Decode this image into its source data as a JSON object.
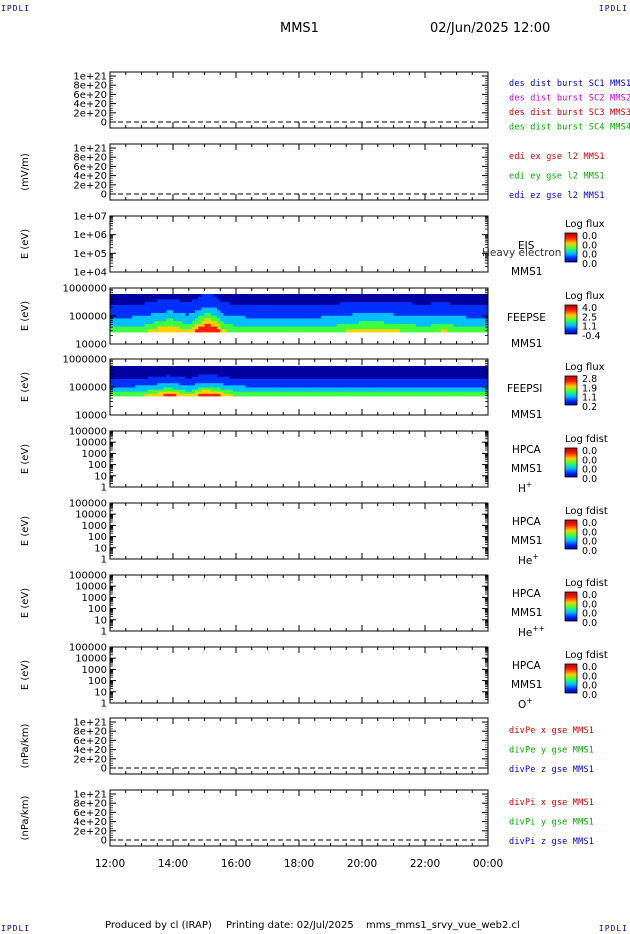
{
  "header": {
    "corner_tl": "IPDLI",
    "corner_tr": "IPDLI",
    "corner_bl": "IPDLI",
    "corner_br": "IPDLI",
    "mission": "MMS1",
    "datetime": "02/Jun/2025 12:00"
  },
  "footer": {
    "produced_by": "Produced by cl (IRAP)",
    "printing_date": "Printing date: 02/Jul/2025",
    "file": "mms_mms1_srvy_vue_web2.cl"
  },
  "chart_data": [
    {
      "type": "line",
      "ytick_labels": [
        "1e+21",
        "8e+20",
        "6e+20",
        "4e+20",
        "2e+20",
        "0"
      ],
      "ylabel": "",
      "legend": [
        {
          "label": "des dist burst SC1 MMS1",
          "color": "#0000cc"
        },
        {
          "label": "des dist burst SC2 MMS2",
          "color": "#cc00cc"
        },
        {
          "label": "des dist burst SC3 MMS3",
          "color": "#cc0000"
        },
        {
          "label": "des dist burst SC4 MMS4",
          "color": "#00aa00"
        }
      ]
    },
    {
      "type": "line",
      "ytick_labels": [
        "1e+21",
        "8e+20",
        "6e+20",
        "4e+20",
        "2e+20",
        "0"
      ],
      "ylabel": "(mV/m)",
      "legend": [
        {
          "label": "edi ex gse l2 MMS1",
          "color": "#cc0000"
        },
        {
          "label": "edi ey gse l2 MMS1",
          "color": "#00aa00"
        },
        {
          "label": "edi ez gse l2 MMS1",
          "color": "#0000cc"
        }
      ]
    },
    {
      "type": "heatmap",
      "ytick_labels": [
        "1e+07",
        "1e+06",
        "1e+05",
        "1e+04"
      ],
      "ylabel": "E (eV)",
      "instrument": [
        "EIS",
        "MMS1"
      ],
      "overlay": "Heavy electron to",
      "colorbar": {
        "title": "Log flux",
        "labels": [
          "0.0",
          "0.0",
          "0.0",
          "0.0"
        ]
      }
    },
    {
      "type": "heatmap",
      "ytick_labels": [
        "1000000",
        "100000",
        "10000"
      ],
      "ylabel": "E (eV)",
      "instrument": [
        "FEEPSE",
        "MMS1"
      ],
      "colorbar": {
        "title": "Log flux",
        "labels": [
          "4.0",
          "2.5",
          "1.1",
          "-0.4"
        ]
      },
      "time_hours": [
        12,
        13,
        13.5,
        13.9,
        14.5,
        14.9,
        15.1,
        15.3,
        15.6,
        16,
        17,
        18,
        19,
        19.9,
        20.3,
        21,
        22,
        22.6,
        23,
        24
      ],
      "intensity": [
        2.0,
        2.1,
        2.6,
        2.9,
        2.3,
        3.4,
        3.9,
        3.5,
        2.4,
        2.1,
        2.0,
        2.0,
        2.1,
        2.5,
        2.6,
        2.4,
        2.1,
        2.4,
        2.1,
        2.0
      ]
    },
    {
      "type": "heatmap",
      "ytick_labels": [
        "1000000",
        "100000",
        "10000"
      ],
      "ylabel": "E (eV)",
      "instrument": [
        "FEEPSI",
        "MMS1"
      ],
      "colorbar": {
        "title": "Log flux",
        "labels": [
          "2.8",
          "1.9",
          "1.1",
          "0.2"
        ]
      },
      "time_hours": [
        12,
        13,
        13.9,
        14.5,
        15.0,
        15.2,
        16,
        18,
        20,
        22,
        24
      ],
      "intensity": [
        1.5,
        1.6,
        2.2,
        1.6,
        2.4,
        2.3,
        1.6,
        1.5,
        1.5,
        1.5,
        1.5
      ]
    },
    {
      "type": "heatmap",
      "ytick_labels": [
        "100000",
        "10000",
        "1000",
        "100",
        "10",
        "1"
      ],
      "ylabel": "E (eV)",
      "instrument": [
        "HPCA",
        "MMS1"
      ],
      "species": "H",
      "species_sup": "+",
      "colorbar": {
        "title": "Log fdist",
        "labels": [
          "0.0",
          "0.0",
          "0.0",
          "0.0"
        ]
      }
    },
    {
      "type": "heatmap",
      "ytick_labels": [
        "100000",
        "10000",
        "1000",
        "100",
        "10",
        "1"
      ],
      "ylabel": "E (eV)",
      "instrument": [
        "HPCA",
        "MMS1"
      ],
      "species": "He",
      "species_sup": "+",
      "colorbar": {
        "title": "Log fdist",
        "labels": [
          "0.0",
          "0.0",
          "0.0",
          "0.0"
        ]
      }
    },
    {
      "type": "heatmap",
      "ytick_labels": [
        "100000",
        "10000",
        "1000",
        "100",
        "10",
        "1"
      ],
      "ylabel": "E (eV)",
      "instrument": [
        "HPCA",
        "MMS1"
      ],
      "species": "He",
      "species_sup": "++",
      "colorbar": {
        "title": "Log fdist",
        "labels": [
          "0.0",
          "0.0",
          "0.0",
          "0.0"
        ]
      }
    },
    {
      "type": "heatmap",
      "ytick_labels": [
        "100000",
        "10000",
        "1000",
        "100",
        "10",
        "1"
      ],
      "ylabel": "E (eV)",
      "instrument": [
        "HPCA",
        "MMS1"
      ],
      "species": "O",
      "species_sup": "+",
      "colorbar": {
        "title": "Log fdist",
        "labels": [
          "0.0",
          "0.0",
          "0.0",
          "0.0"
        ]
      }
    },
    {
      "type": "line",
      "ytick_labels": [
        "1e+21",
        "8e+20",
        "6e+20",
        "4e+20",
        "2e+20",
        "0"
      ],
      "ylabel": "(nPa/km)",
      "legend": [
        {
          "label": "divPe x gse MMS1",
          "color": "#cc0000"
        },
        {
          "label": "divPe y gse MMS1",
          "color": "#00aa00"
        },
        {
          "label": "divPe z gse MMS1",
          "color": "#0000cc"
        }
      ]
    },
    {
      "type": "line",
      "ytick_labels": [
        "1e+21",
        "8e+20",
        "6e+20",
        "4e+20",
        "2e+20",
        "0"
      ],
      "ylabel": "(nPa/km)",
      "legend": [
        {
          "label": "divPi x gse MMS1",
          "color": "#cc0000"
        },
        {
          "label": "divPi y gse MMS1",
          "color": "#00aa00"
        },
        {
          "label": "divPi z gse MMS1",
          "color": "#0000cc"
        }
      ]
    }
  ],
  "x_axis": {
    "tick_labels": [
      "12:00",
      "14:00",
      "16:00",
      "18:00",
      "20:00",
      "22:00",
      "00:00"
    ]
  }
}
